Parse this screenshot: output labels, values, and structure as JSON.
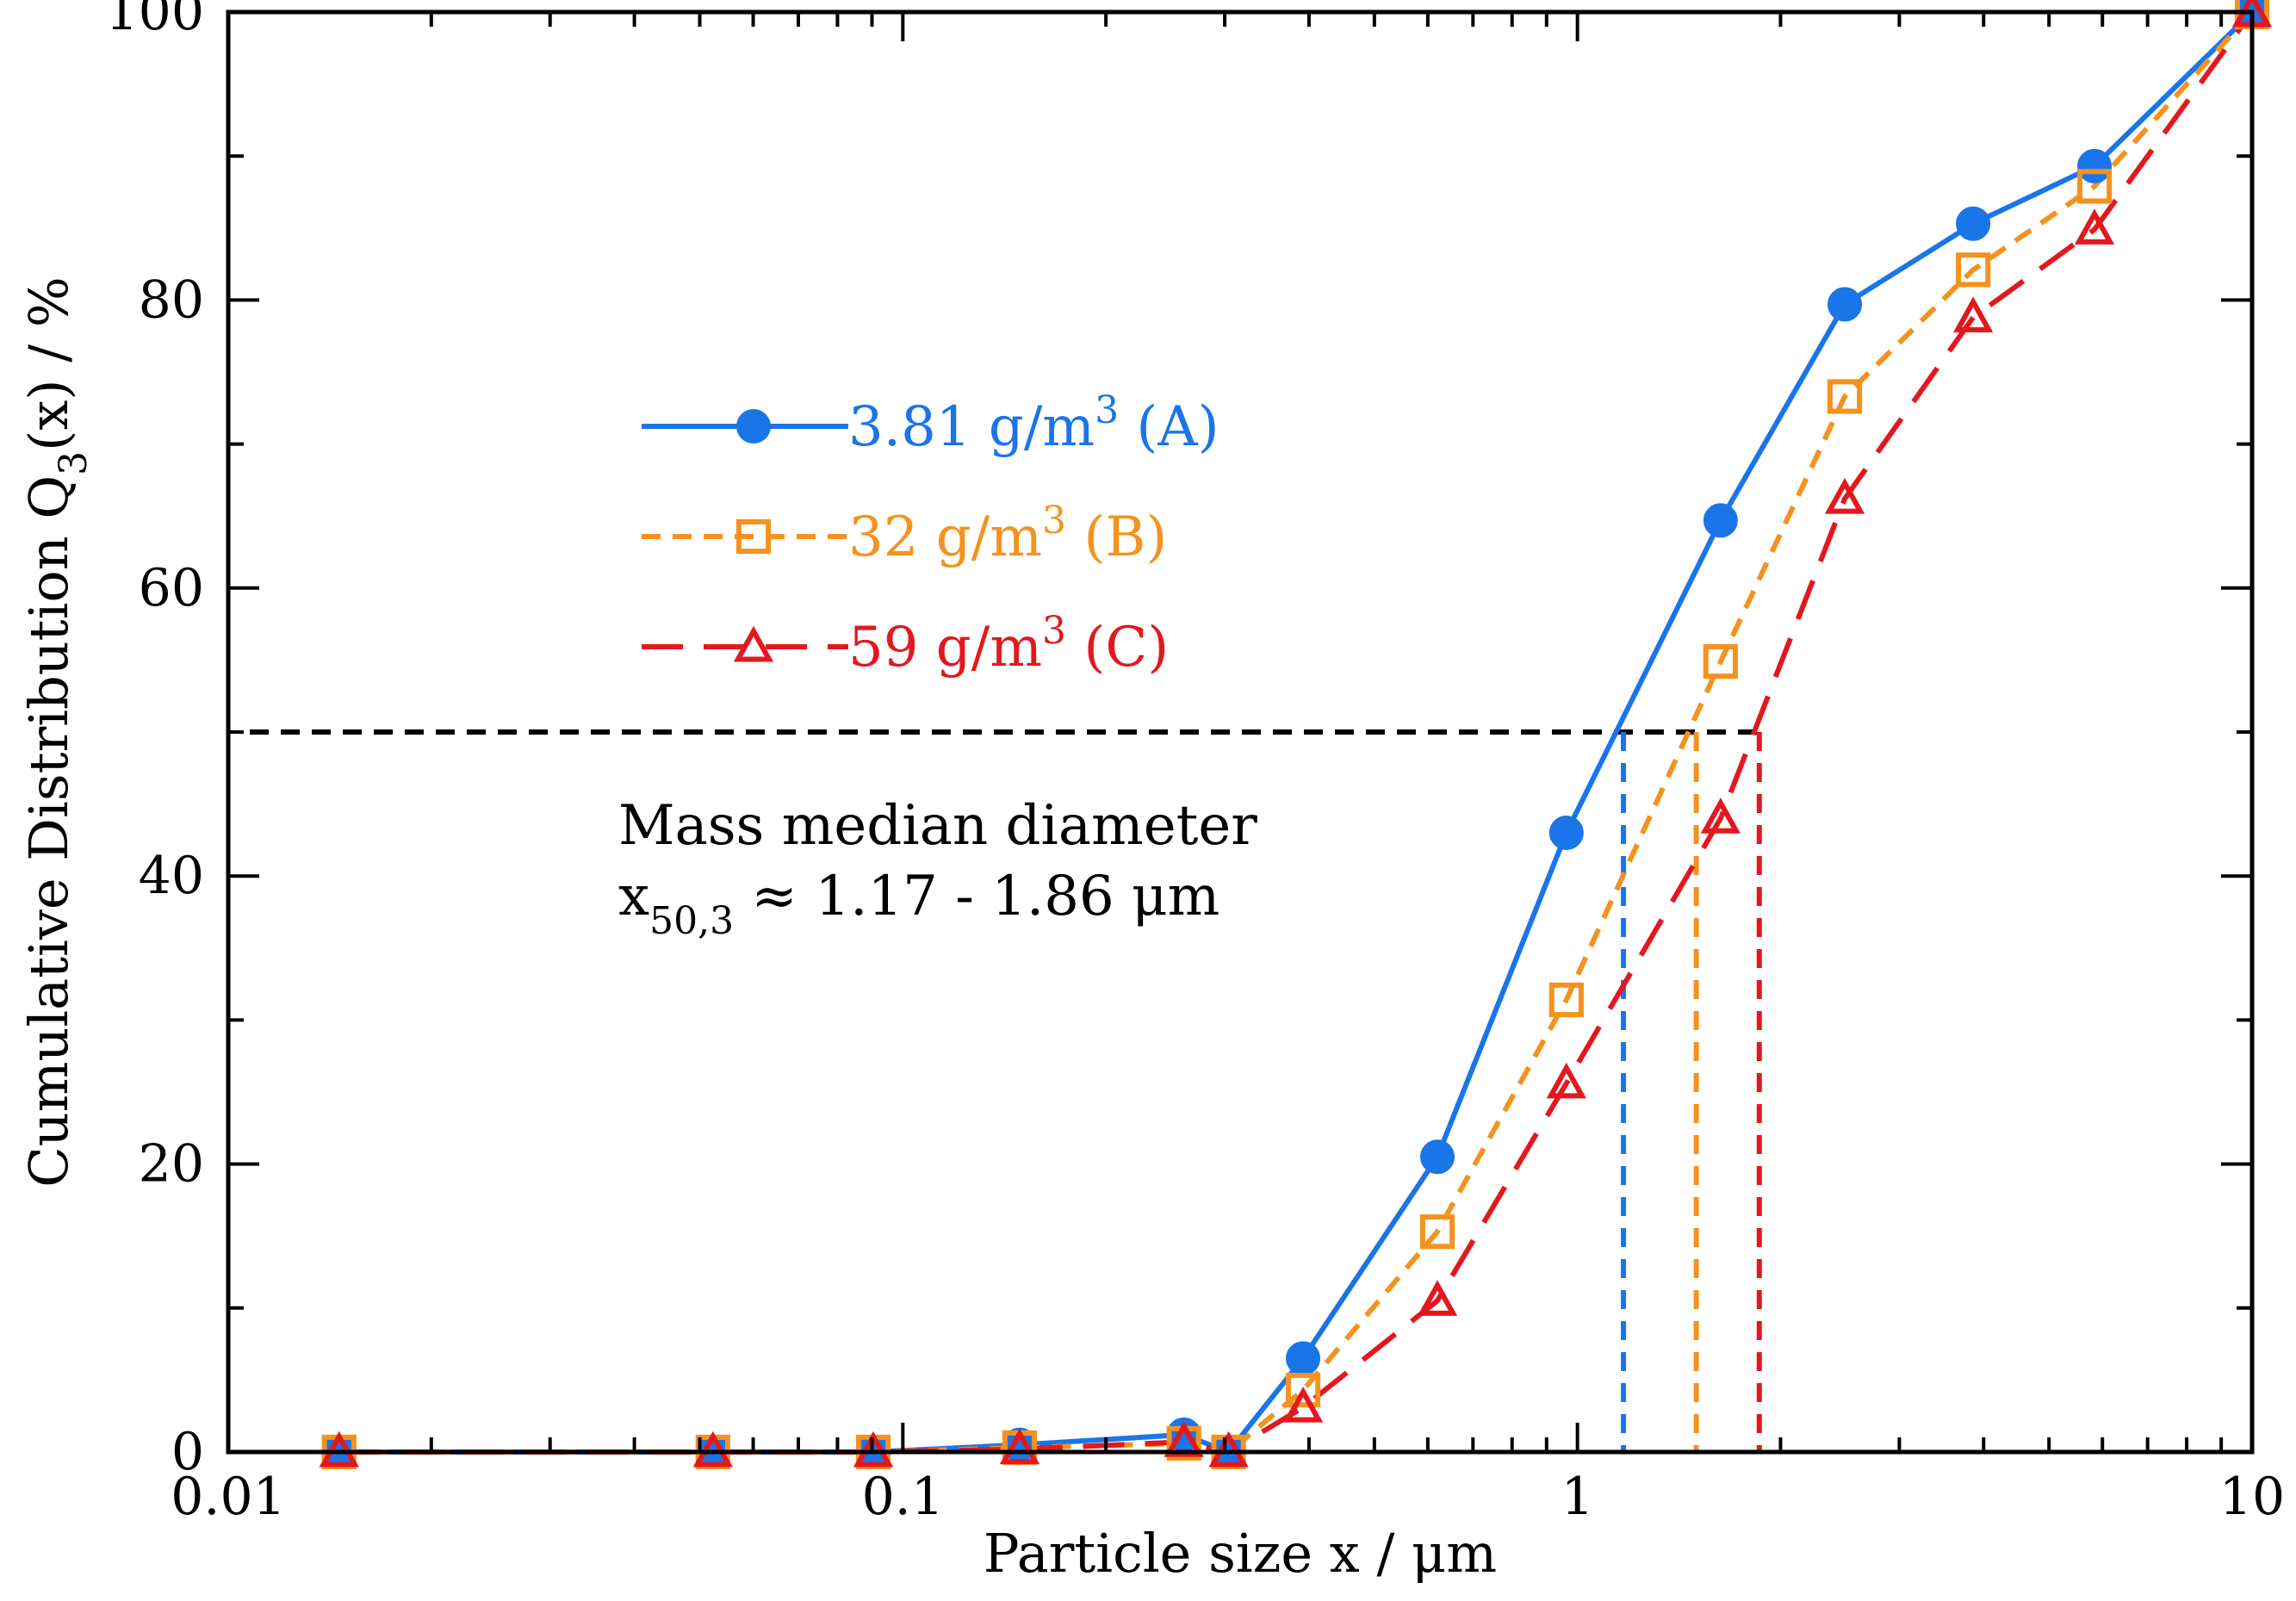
{
  "chart_data": {
    "type": "line",
    "title": "",
    "xlabel": "Particle size x / μm",
    "ylabel_main": "Cumulative Distribution Q",
    "ylabel_sub": "3",
    "ylabel_tail": "(x) / %",
    "xscale": "log",
    "xlim": [
      0.01,
      10
    ],
    "ylim": [
      0,
      100
    ],
    "xticks": [
      0.01,
      0.1,
      1,
      10
    ],
    "xtick_labels": [
      "0.01",
      "0.1",
      "1",
      "10"
    ],
    "yticks": [
      0,
      20,
      40,
      60,
      80,
      100
    ],
    "ytick_labels": [
      "0",
      "20",
      "40",
      "60",
      "80",
      "100"
    ],
    "grid": false,
    "legend_position": "upper-left",
    "x": [
      0.0146,
      0.0523,
      0.0904,
      0.149,
      0.261,
      0.304,
      0.392,
      0.62,
      0.963,
      1.63,
      2.49,
      3.86,
      5.84,
      10
    ],
    "series": [
      {
        "name": "3.81 g/m",
        "name_sup": "3",
        "name_tail": " (A)",
        "color": "#1a75e8",
        "marker": "filled-circle",
        "linestyle": "solid",
        "values": [
          0,
          0,
          0,
          0.5,
          1.2,
          0,
          6.5,
          20.5,
          43.0,
          64.7,
          79.7,
          85.3,
          89.3,
          100
        ]
      },
      {
        "name": "32 g/m",
        "name_sup": "3",
        "name_tail": " (B)",
        "color": "#f5921e",
        "marker": "open-square",
        "linestyle": "short-dash",
        "values": [
          0,
          0,
          0,
          0.3,
          0.6,
          0,
          4.3,
          15.3,
          31.4,
          54.9,
          73.3,
          82.1,
          87.9,
          100
        ]
      },
      {
        "name": "59 g/m",
        "name_sup": "3",
        "name_tail": " (C)",
        "color": "#e3181e",
        "marker": "open-triangle",
        "linestyle": "long-dash",
        "values": [
          0,
          0,
          0,
          0.2,
          0.7,
          0,
          3.1,
          10.5,
          25.6,
          44.0,
          66.2,
          78.8,
          84.9,
          100
        ]
      }
    ],
    "reference_lines": {
      "horizontal_y": 50,
      "median_x": [
        1.17,
        1.5,
        1.86
      ],
      "median_colors": [
        "#1a75e8",
        "#f5921e",
        "#e3181e"
      ]
    },
    "annotation": {
      "line1": "Mass median diameter",
      "line2_main": "x",
      "line2_sub": "50,3",
      "line2_tail": " ≈ 1.17 - 1.86 μm"
    }
  }
}
